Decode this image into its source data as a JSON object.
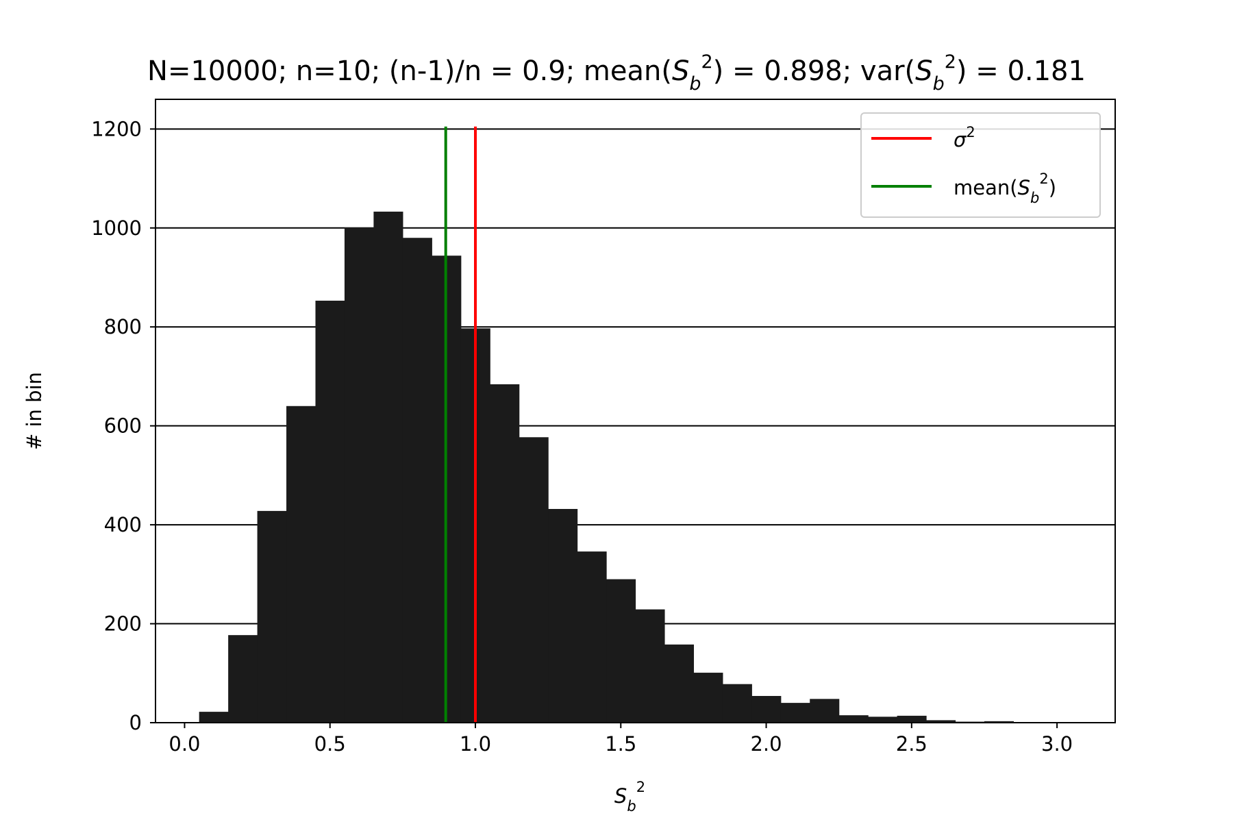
{
  "chart_data": {
    "type": "bar",
    "title_parts": {
      "prefix": "N=10000; n=10; (n-1)/n = 0.9; mean(",
      "mean_mid": ") = 0.898; var(",
      "var_end": ") = 0.181"
    },
    "symbol": {
      "base": "S",
      "sub": "b",
      "sup": "2"
    },
    "sigma": {
      "base": "σ",
      "sup": "2"
    },
    "xlabel": "S_b^2",
    "ylabel": "# in bin",
    "xlim": [
      -0.1,
      3.2
    ],
    "ylim": [
      0,
      1260
    ],
    "xticks": [
      "0.0",
      "0.5",
      "1.0",
      "1.5",
      "2.0",
      "2.5",
      "3.0"
    ],
    "xtick_values": [
      0.0,
      0.5,
      1.0,
      1.5,
      2.0,
      2.5,
      3.0
    ],
    "yticks": [
      "0",
      "200",
      "400",
      "600",
      "800",
      "1000",
      "1200"
    ],
    "ytick_values": [
      0,
      200,
      400,
      600,
      800,
      1000,
      1200
    ],
    "grid": "y",
    "bin_width": 0.1,
    "bin_starts": [
      0.0,
      0.05,
      0.15,
      0.25,
      0.35,
      0.45,
      0.55,
      0.65,
      0.75,
      0.85,
      0.95,
      1.05,
      1.15,
      1.25,
      1.35,
      1.45,
      1.55,
      1.65,
      1.75,
      1.85,
      1.95,
      2.05,
      2.15,
      2.25,
      2.35,
      2.45,
      2.55,
      2.65,
      2.75,
      2.85,
      2.95
    ],
    "bin_counts": [
      0,
      22,
      177,
      428,
      640,
      853,
      1001,
      1033,
      980,
      944,
      797,
      684,
      577,
      432,
      346,
      290,
      229,
      158,
      101,
      78,
      54,
      40,
      48,
      15,
      12,
      14,
      5,
      2,
      3,
      1,
      0
    ],
    "bar_color": "#1b1b1b",
    "vlines": [
      {
        "x": 0.898,
        "color": "#008000",
        "label": "mean"
      },
      {
        "x": 1.0,
        "color": "#ff0000",
        "label": "sigma"
      }
    ],
    "legend": {
      "position": "upper-right",
      "entries": [
        {
          "key": "sigma",
          "color": "#ff0000",
          "label_text": "σ",
          "label_sup": "2"
        },
        {
          "key": "mean",
          "color": "#008000",
          "label_prefix": "mean(",
          "label_suffix": ")"
        }
      ]
    }
  }
}
